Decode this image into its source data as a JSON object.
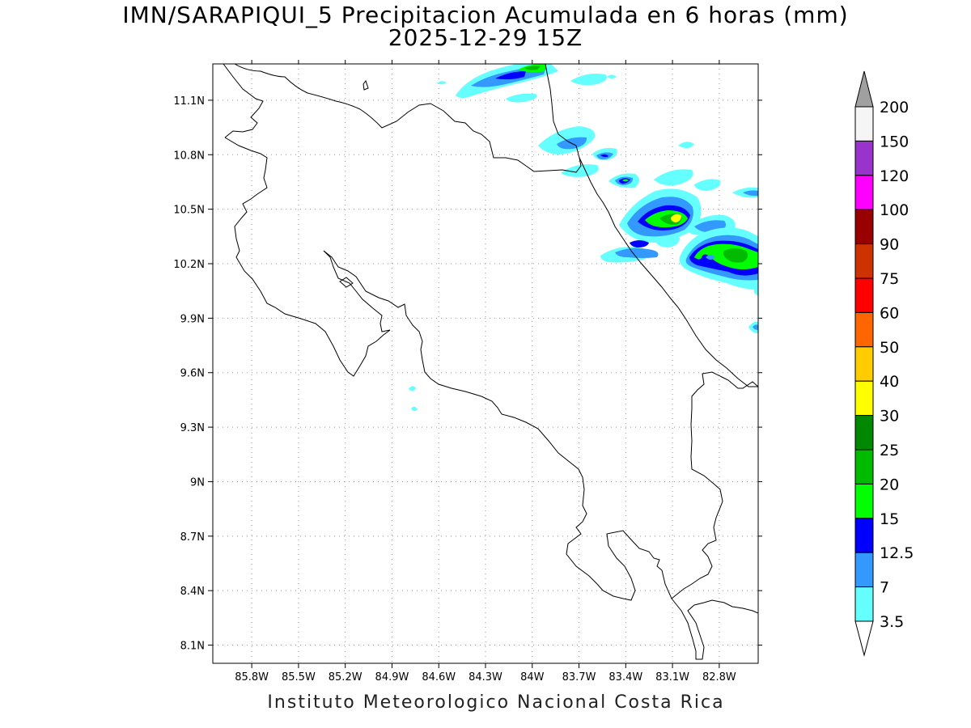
{
  "title": {
    "line1": "IMN/SARAPIQUI_5 Precipitacion Acumulada en 6 horas (mm)",
    "line2": "2025-12-29 15Z"
  },
  "footer": "Instituto Meteorologico Nacional Costa Rica",
  "map": {
    "lon_range": [
      -86.05,
      -82.55
    ],
    "lat_range": [
      8.0,
      11.3
    ],
    "x_ticks": [
      {
        "value": -85.8,
        "label": "85.8W"
      },
      {
        "value": -85.5,
        "label": "85.5W"
      },
      {
        "value": -85.2,
        "label": "85.2W"
      },
      {
        "value": -84.9,
        "label": "84.9W"
      },
      {
        "value": -84.6,
        "label": "84.6W"
      },
      {
        "value": -84.3,
        "label": "84.3W"
      },
      {
        "value": -84.0,
        "label": "84W"
      },
      {
        "value": -83.7,
        "label": "83.7W"
      },
      {
        "value": -83.4,
        "label": "83.4W"
      },
      {
        "value": -83.1,
        "label": "83.1W"
      },
      {
        "value": -82.8,
        "label": "82.8W"
      }
    ],
    "y_ticks": [
      {
        "value": 11.1,
        "label": "11.1N"
      },
      {
        "value": 10.8,
        "label": "10.8N"
      },
      {
        "value": 10.5,
        "label": "10.5N"
      },
      {
        "value": 10.2,
        "label": "10.2N"
      },
      {
        "value": 9.9,
        "label": "9.9N"
      },
      {
        "value": 9.6,
        "label": "9.6N"
      },
      {
        "value": 9.3,
        "label": "9.3N"
      },
      {
        "value": 9.0,
        "label": "9N"
      },
      {
        "value": 8.7,
        "label": "8.7N"
      },
      {
        "value": 8.4,
        "label": "8.4N"
      },
      {
        "value": 8.1,
        "label": "8.1N"
      }
    ],
    "grid": "dotted"
  },
  "colorbar": {
    "levels": [
      "200",
      "150",
      "120",
      "100",
      "90",
      "75",
      "60",
      "50",
      "40",
      "30",
      "25",
      "20",
      "15",
      "12.5",
      "7",
      "3.5"
    ],
    "colors": [
      "#f5f5f5",
      "#9933cc",
      "#ff00ff",
      "#990000",
      "#cc3300",
      "#ff0000",
      "#ff6600",
      "#ffcc00",
      "#ffff00",
      "#008800",
      "#00bb00",
      "#00ff00",
      "#0000ff",
      "#3399ff",
      "#66ffff"
    ],
    "top_arrow_color": "#a0a0a0",
    "bottom_arrow_color": "#ffffff"
  }
}
